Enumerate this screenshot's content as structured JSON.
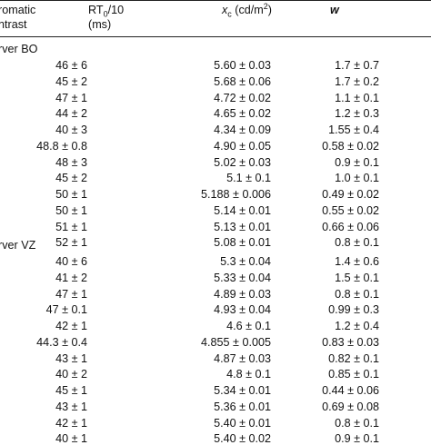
{
  "table": {
    "headers": {
      "col0_line1": "romatic",
      "col0_line2": "ntrast",
      "col1_line1": "RT",
      "col1_sub": "0",
      "col1_rest": "/10",
      "col1_line2": "(ms)",
      "col2_sym": "x",
      "col2_sub": "c",
      "col2_unit_pre": " (cd/m",
      "col2_sup": "2",
      "col2_unit_post": ")",
      "col3": "w"
    },
    "groups": [
      {
        "label": "rver BO",
        "rows": [
          {
            "rt": "46 ± 6",
            "xc": "5.60 ± 0.03",
            "w": "1.7 ± 0.7"
          },
          {
            "rt": "45 ± 2",
            "xc": "5.68 ± 0.06",
            "w": "1.7 ± 0.2"
          },
          {
            "rt": "47 ± 1",
            "xc": "4.72 ± 0.02",
            "w": "1.1 ± 0.1"
          },
          {
            "rt": "44 ± 2",
            "xc": "4.65 ± 0.02",
            "w": "1.2 ± 0.3"
          },
          {
            "rt": "40 ± 3",
            "xc": "4.34 ± 0.09",
            "w": "1.55 ± 0.4"
          },
          {
            "rt": "48.8 ± 0.8",
            "xc": "4.90 ± 0.05",
            "w": "0.58 ± 0.02"
          },
          {
            "rt": "48 ± 3",
            "xc": "5.02 ± 0.03",
            "w": "0.9 ± 0.1"
          },
          {
            "rt": "45 ± 2",
            "xc": "5.1 ± 0.1",
            "w": "1.0 ± 0.1"
          },
          {
            "rt": "50 ± 1",
            "xc": "5.188 ± 0.006",
            "w": "0.49 ± 0.02"
          },
          {
            "rt": "50 ± 1",
            "xc": "5.14 ± 0.01",
            "w": "0.55 ± 0.02"
          },
          {
            "rt": "51 ± 1",
            "xc": "5.13 ± 0.01",
            "w": "0.66 ± 0.06"
          },
          {
            "rt": "52 ± 1",
            "xc": "5.08 ± 0.01",
            "w": "0.8 ± 0.1"
          }
        ]
      },
      {
        "label": "rver VZ",
        "rows": [
          {
            "rt": "40 ± 6",
            "xc": "5.3 ± 0.04",
            "w": "1.4 ± 0.6"
          },
          {
            "rt": "41 ± 2",
            "xc": "5.33 ± 0.04",
            "w": "1.5 ± 0.1"
          },
          {
            "rt": "47 ± 1",
            "xc": "4.89 ± 0.03",
            "w": "0.8 ± 0.1"
          },
          {
            "rt": "47 ± 0.1",
            "xc": "4.93 ± 0.04",
            "w": "0.99 ± 0.3"
          },
          {
            "rt": "42 ± 1",
            "xc": "4.6 ± 0.1",
            "w": "1.2 ± 0.4"
          },
          {
            "rt": "44.3 ± 0.4",
            "xc": "4.855 ± 0.005",
            "w": "0.83 ± 0.03"
          },
          {
            "rt": "43 ± 1",
            "xc": "4.87 ± 0.03",
            "w": "0.82 ± 0.1"
          },
          {
            "rt": "40 ± 2",
            "xc": "4.8 ± 0.1",
            "w": "0.85 ± 0.1"
          },
          {
            "rt": "45 ± 1",
            "xc": "5.34 ± 0.01",
            "w": "0.44 ± 0.06"
          },
          {
            "rt": "43 ± 1",
            "xc": "5.36 ± 0.01",
            "w": "0.69 ± 0.08"
          },
          {
            "rt": "42 ± 1",
            "xc": "5.40 ± 0.01",
            "w": "0.8 ± 0.1"
          },
          {
            "rt": "40 ± 1",
            "xc": "5.40 ± 0.02",
            "w": "0.9 ± 0.1"
          }
        ]
      }
    ]
  }
}
